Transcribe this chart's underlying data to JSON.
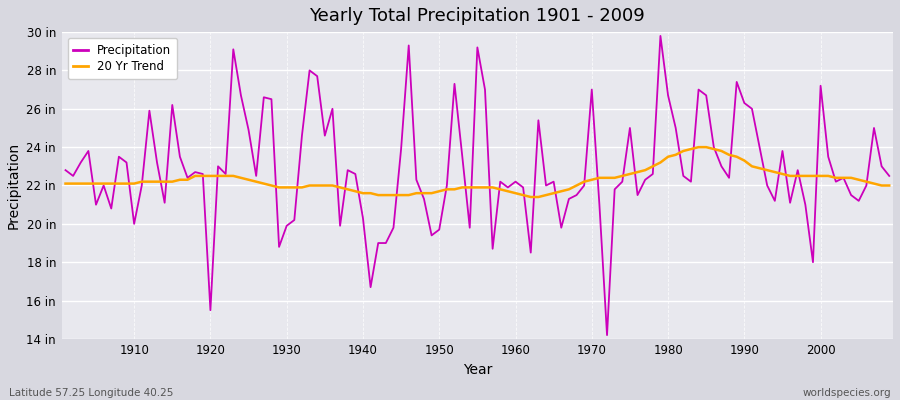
{
  "title": "Yearly Total Precipitation 1901 - 2009",
  "xlabel": "Year",
  "ylabel": "Precipitation",
  "lat_lon_label": "Latitude 57.25 Longitude 40.25",
  "source_label": "worldspecies.org",
  "ylim": [
    14,
    30
  ],
  "ytick_values": [
    14,
    16,
    18,
    20,
    22,
    24,
    26,
    28,
    30
  ],
  "fig_bg_color": "#d8d8e0",
  "plot_bg_color": "#e8e8ee",
  "precip_color": "#cc00bb",
  "trend_color": "#ffa500",
  "years": [
    1901,
    1902,
    1903,
    1904,
    1905,
    1906,
    1907,
    1908,
    1909,
    1910,
    1911,
    1912,
    1913,
    1914,
    1915,
    1916,
    1917,
    1918,
    1919,
    1920,
    1921,
    1922,
    1923,
    1924,
    1925,
    1926,
    1927,
    1928,
    1929,
    1930,
    1931,
    1932,
    1933,
    1934,
    1935,
    1936,
    1937,
    1938,
    1939,
    1940,
    1941,
    1942,
    1943,
    1944,
    1945,
    1946,
    1947,
    1948,
    1949,
    1950,
    1951,
    1952,
    1953,
    1954,
    1955,
    1956,
    1957,
    1958,
    1959,
    1960,
    1961,
    1962,
    1963,
    1964,
    1965,
    1966,
    1967,
    1968,
    1969,
    1970,
    1971,
    1972,
    1973,
    1974,
    1975,
    1976,
    1977,
    1978,
    1979,
    1980,
    1981,
    1982,
    1983,
    1984,
    1985,
    1986,
    1987,
    1988,
    1989,
    1990,
    1991,
    1992,
    1993,
    1994,
    1995,
    1996,
    1997,
    1998,
    1999,
    2000,
    2001,
    2002,
    2003,
    2004,
    2005,
    2006,
    2007,
    2008,
    2009
  ],
  "precip": [
    22.8,
    22.5,
    23.2,
    23.8,
    21.0,
    22.0,
    20.8,
    23.5,
    23.2,
    20.0,
    22.0,
    25.9,
    23.2,
    21.1,
    26.2,
    23.5,
    22.4,
    22.7,
    22.6,
    15.5,
    23.0,
    22.6,
    29.1,
    26.7,
    24.9,
    22.5,
    26.6,
    26.5,
    18.8,
    19.9,
    20.2,
    24.6,
    28.0,
    27.7,
    24.6,
    26.0,
    19.9,
    22.8,
    22.6,
    20.3,
    16.7,
    19.0,
    19.0,
    19.8,
    23.9,
    29.3,
    22.3,
    21.3,
    19.4,
    19.7,
    22.0,
    27.3,
    23.6,
    19.8,
    29.2,
    27.0,
    18.7,
    22.2,
    21.9,
    22.2,
    21.9,
    18.5,
    25.4,
    22.0,
    22.2,
    19.8,
    21.3,
    21.5,
    22.0,
    27.0,
    21.0,
    14.2,
    21.8,
    22.2,
    25.0,
    21.5,
    22.3,
    22.6,
    29.8,
    26.7,
    25.0,
    22.5,
    22.2,
    27.0,
    26.7,
    24.0,
    23.0,
    22.4,
    27.4,
    26.3,
    26.0,
    24.0,
    22.0,
    21.2,
    23.8,
    21.1,
    22.8,
    21.0,
    18.0,
    27.2,
    23.5,
    22.2,
    22.4,
    21.5,
    21.2,
    22.0,
    25.0,
    23.0,
    22.5
  ],
  "trend": [
    22.1,
    22.1,
    22.1,
    22.1,
    22.1,
    22.1,
    22.1,
    22.1,
    22.1,
    22.1,
    22.2,
    22.2,
    22.2,
    22.2,
    22.2,
    22.3,
    22.3,
    22.5,
    22.5,
    22.5,
    22.5,
    22.5,
    22.5,
    22.4,
    22.3,
    22.2,
    22.1,
    22.0,
    21.9,
    21.9,
    21.9,
    21.9,
    22.0,
    22.0,
    22.0,
    22.0,
    21.9,
    21.8,
    21.7,
    21.6,
    21.6,
    21.5,
    21.5,
    21.5,
    21.5,
    21.5,
    21.6,
    21.6,
    21.6,
    21.7,
    21.8,
    21.8,
    21.9,
    21.9,
    21.9,
    21.9,
    21.9,
    21.8,
    21.7,
    21.6,
    21.5,
    21.4,
    21.4,
    21.5,
    21.6,
    21.7,
    21.8,
    22.0,
    22.2,
    22.3,
    22.4,
    22.4,
    22.4,
    22.5,
    22.6,
    22.7,
    22.8,
    23.0,
    23.2,
    23.5,
    23.6,
    23.8,
    23.9,
    24.0,
    24.0,
    23.9,
    23.8,
    23.6,
    23.5,
    23.3,
    23.0,
    22.9,
    22.8,
    22.7,
    22.6,
    22.5,
    22.5,
    22.5,
    22.5,
    22.5,
    22.5,
    22.4,
    22.4,
    22.4,
    22.3,
    22.2,
    22.1,
    22.0,
    22.0
  ],
  "xtick_positions": [
    1910,
    1920,
    1930,
    1940,
    1950,
    1960,
    1970,
    1980,
    1990,
    2000
  ]
}
